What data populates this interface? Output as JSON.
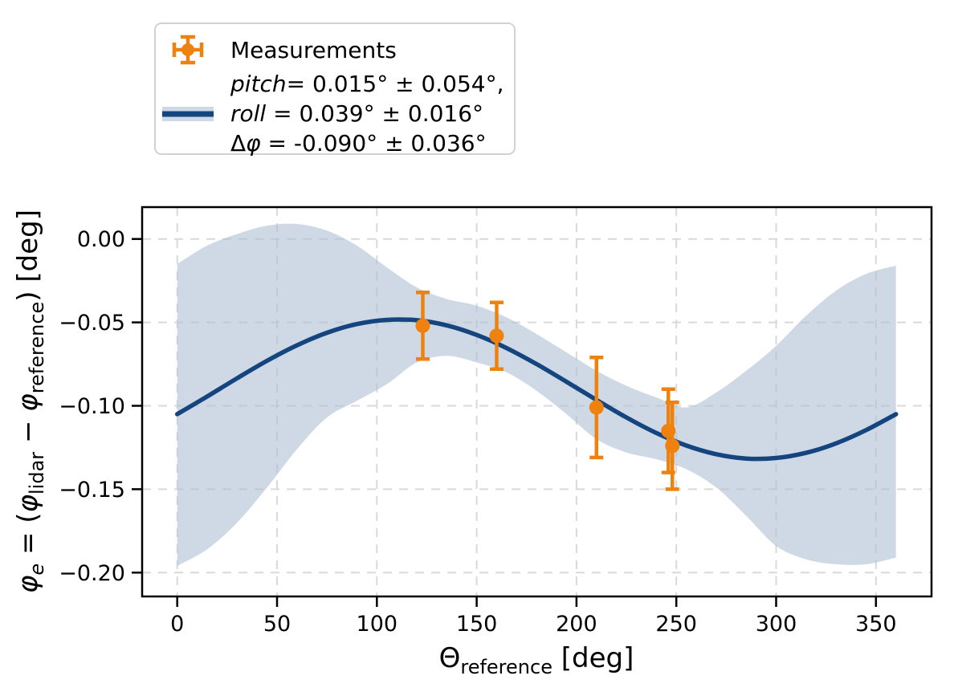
{
  "figure": {
    "background": "#ffffff"
  },
  "legend": {
    "measurements_label": "Measurements",
    "fit_lines": [
      [
        {
          "t": "pitch",
          "it": true
        },
        {
          "t": "= 0.015° ± 0.054°,",
          "it": false
        }
      ],
      [
        {
          "t": "roll",
          "it": true
        },
        {
          "t": " = 0.039° ± 0.016°",
          "it": false
        }
      ],
      [
        {
          "t": "Δ",
          "it": false
        },
        {
          "t": "φ",
          "it": true
        },
        {
          "t": " = -0.090° ± 0.036°",
          "it": false
        }
      ]
    ]
  },
  "chart_data": {
    "type": "line",
    "title": "",
    "xlabel_text": "Θ_reference [deg]",
    "ylabel_text": "φ_e = (φ_lidar − φ_reference) [deg]",
    "xlabel_segments": [
      {
        "t": "Θ",
        "it": false,
        "sub": false
      },
      {
        "t": "reference",
        "it": false,
        "sub": true
      },
      {
        "t": " [deg]",
        "it": false,
        "sub": false
      }
    ],
    "ylabel_segments": [
      {
        "t": "φ",
        "it": true,
        "sub": false
      },
      {
        "t": "e",
        "it": true,
        "sub": true
      },
      {
        "t": " = (",
        "it": false,
        "sub": false
      },
      {
        "t": "φ",
        "it": true,
        "sub": false
      },
      {
        "t": "lidar",
        "it": false,
        "sub": true
      },
      {
        "t": " − ",
        "it": false,
        "sub": false
      },
      {
        "t": "φ",
        "it": true,
        "sub": false
      },
      {
        "t": "reference",
        "it": false,
        "sub": true
      },
      {
        "t": ") [deg]",
        "it": false,
        "sub": false
      }
    ],
    "x_ticks": [
      0,
      50,
      100,
      150,
      200,
      250,
      300,
      350
    ],
    "x_tick_labels": [
      "0",
      "50",
      "100",
      "150",
      "200",
      "250",
      "300",
      "350"
    ],
    "y_ticks": [
      0.0,
      -0.05,
      -0.1,
      -0.15,
      -0.2
    ],
    "y_tick_labels": [
      "0.00",
      "−0.05",
      "−0.10",
      "−0.15",
      "−0.20"
    ],
    "xlim": [
      -17.6,
      377.8
    ],
    "ylim": [
      -0.2143,
      0.0191
    ],
    "grid": true,
    "legend_position": "upper left (outside axes, figure top)",
    "fit": {
      "model": "phi_e(theta) = dphi - pitch*cos(theta) + roll*sin(theta)",
      "pitch_deg": 0.015,
      "pitch_err_deg": 0.054,
      "roll_deg": 0.039,
      "roll_err_deg": 0.016,
      "dphi_deg": -0.09,
      "dphi_err_deg": 0.036
    },
    "curve": {
      "x": [
        0,
        15,
        30,
        45,
        60,
        75,
        90,
        105,
        120,
        135,
        150,
        165,
        180,
        195,
        210,
        225,
        240,
        255,
        270,
        285,
        300,
        315,
        330,
        345,
        360
      ],
      "y": [
        -0.105,
        -0.0944,
        -0.0835,
        -0.073,
        -0.0637,
        -0.0562,
        -0.051,
        -0.0485,
        -0.0487,
        -0.0518,
        -0.0575,
        -0.0654,
        -0.075,
        -0.0856,
        -0.0965,
        -0.107,
        -0.1163,
        -0.1238,
        -0.129,
        -0.1316,
        -0.1313,
        -0.1282,
        -0.1225,
        -0.1146,
        -0.105
      ]
    },
    "band": {
      "x": [
        0,
        15,
        30,
        45,
        60,
        75,
        90,
        105,
        120,
        135,
        150,
        165,
        180,
        195,
        210,
        225,
        240,
        255,
        270,
        285,
        300,
        315,
        330,
        345,
        360
      ],
      "upper": [
        -0.015,
        -0.004,
        0.003,
        0.008,
        0.009,
        0.005,
        -0.004,
        -0.017,
        -0.029,
        -0.036,
        -0.04,
        -0.047,
        -0.057,
        -0.068,
        -0.079,
        -0.088,
        -0.095,
        -0.101,
        -0.092,
        -0.079,
        -0.064,
        -0.046,
        -0.031,
        -0.021,
        -0.016
      ],
      "lower": [
        -0.196,
        -0.186,
        -0.17,
        -0.149,
        -0.126,
        -0.107,
        -0.097,
        -0.087,
        -0.074,
        -0.07,
        -0.074,
        -0.08,
        -0.091,
        -0.105,
        -0.12,
        -0.128,
        -0.132,
        -0.138,
        -0.149,
        -0.166,
        -0.184,
        -0.192,
        -0.195,
        -0.195,
        -0.191
      ]
    },
    "measurements": [
      {
        "theta": 123,
        "phi": -0.052,
        "err": 0.02
      },
      {
        "theta": 160,
        "phi": -0.058,
        "err": 0.02
      },
      {
        "theta": 210,
        "phi": -0.101,
        "err": 0.03
      },
      {
        "theta": 246,
        "phi": -0.115,
        "err": 0.025
      },
      {
        "theta": 248,
        "phi": -0.124,
        "err": 0.026
      }
    ],
    "colors": {
      "curve": "#14457f",
      "band_fill": "#aebfd4",
      "band_solid_equivalent": "#ced9e5",
      "points": "#ef820e",
      "grid": "#d9d9d9",
      "spine": "#000000",
      "text": "#000000",
      "legend_border": "#d2d2d2"
    }
  }
}
